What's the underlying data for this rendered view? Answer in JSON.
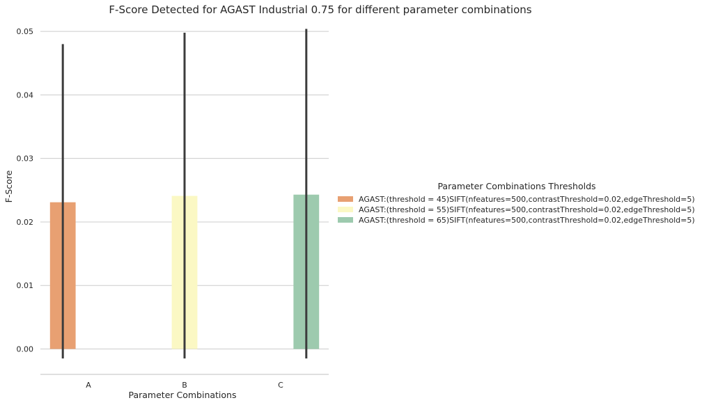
{
  "chart_data": {
    "type": "bar",
    "title": "F-Score Detected for AGAST Industrial 0.75 for different parameter combinations",
    "xlabel": "Parameter Combinations",
    "ylabel": "F-Score",
    "categories": [
      "A",
      "B",
      "C"
    ],
    "ylim": [
      -0.004,
      0.051
    ],
    "yticks": [
      0.0,
      0.01,
      0.02,
      0.03,
      0.04,
      0.05
    ],
    "ytick_labels": [
      "0.00",
      "0.01",
      "0.02",
      "0.03",
      "0.04",
      "0.05"
    ],
    "grid": "horizontal",
    "legend": {
      "title": "Parameter Combinations Thresholds",
      "placement": "center-right"
    },
    "series": [
      {
        "name": "AGAST:(threshold = 45)SIFT(nfeatures=500,contrastThreshold=0.02,edgeThreshold=5)",
        "color": "#e8a072",
        "category": "A",
        "value": 0.0231,
        "err_low": -0.0015,
        "err_high": 0.048
      },
      {
        "name": "AGAST:(threshold = 55)SIFT(nfeatures=500,contrastThreshold=0.02,edgeThreshold=5)",
        "color": "#fbf8c4",
        "category": "B",
        "value": 0.0241,
        "err_low": -0.0015,
        "err_high": 0.0498
      },
      {
        "name": "AGAST:(threshold = 65)SIFT(nfeatures=500,contrastThreshold=0.02,edgeThreshold=5)",
        "color": "#9dcaae",
        "category": "C",
        "value": 0.0243,
        "err_low": -0.0015,
        "err_high": 0.0504
      }
    ]
  }
}
